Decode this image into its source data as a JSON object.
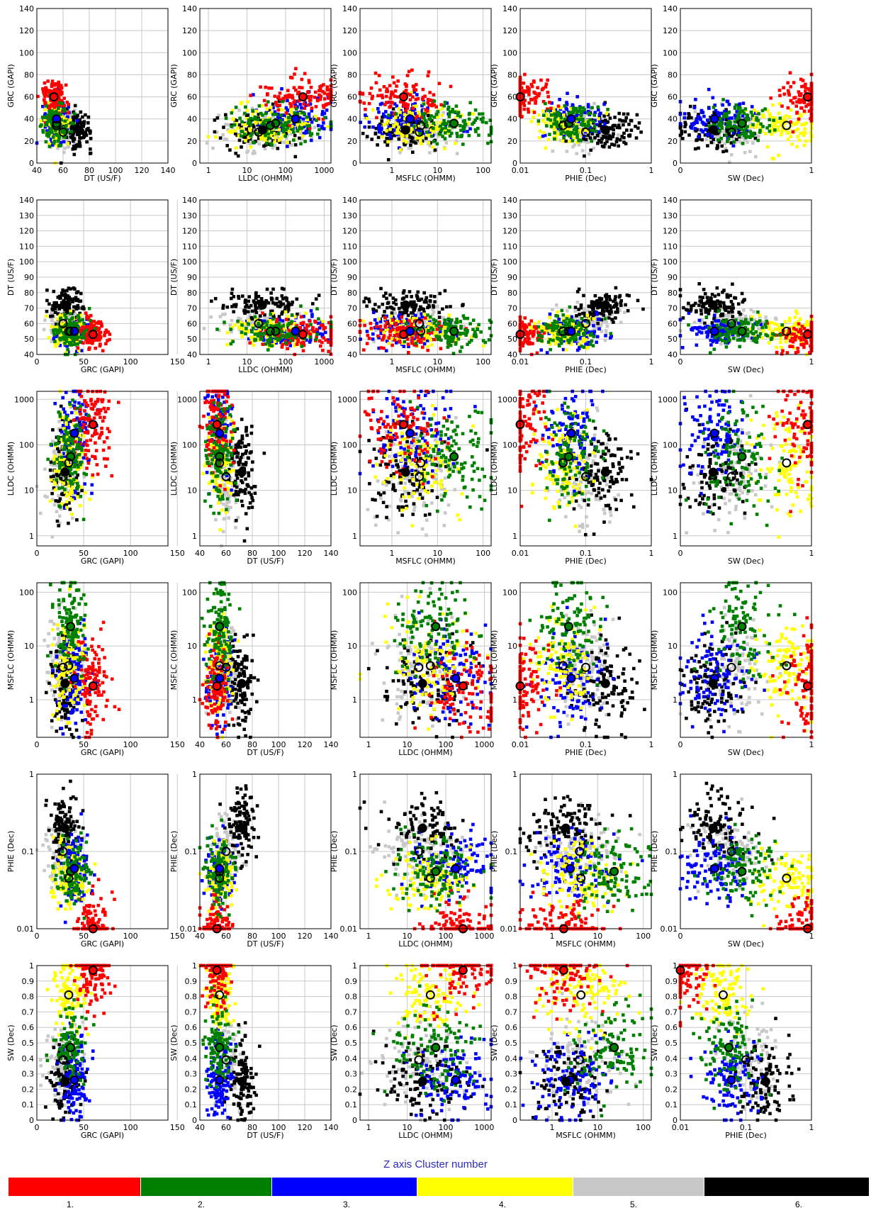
{
  "chart_data": {
    "type": "scatter",
    "layout": "scatter-matrix",
    "rows": 6,
    "cols": 5,
    "axes": {
      "GRC (GAPI)": {
        "scale": "linear",
        "range": [
          0,
          140
        ]
      },
      "DT (US/F)": {
        "scale": "linear",
        "range": [
          40,
          140
        ]
      },
      "LLDC (OHMM)": {
        "scale": "log",
        "range": [
          0.6,
          1500
        ]
      },
      "MSFLC (OHMM)": {
        "scale": "log",
        "range": [
          0.2,
          150
        ]
      },
      "PHIE (Dec)": {
        "scale": "log",
        "range": [
          0.01,
          1
        ]
      },
      "SW (Dec)": {
        "scale": "linear",
        "range": [
          0,
          1
        ]
      }
    },
    "x_ticks": {
      "GRC (GAPI)": [
        "0",
        "50",
        "100",
        "150"
      ],
      "DT (US/F)": [
        "40",
        "60",
        "80",
        "100",
        "120",
        "140"
      ],
      "LLDC (OHMM)": [
        "1",
        "10",
        "100",
        "1000"
      ],
      "MSFLC (OHMM)": [
        "1",
        "10",
        "100"
      ],
      "PHIE (Dec)": [
        "0.01",
        "0.1",
        "1"
      ],
      "SW (Dec)": [
        "0",
        "1"
      ]
    },
    "y_ticks": {
      "GRC (GAPI)": [
        "0",
        "20",
        "40",
        "60",
        "80",
        "100",
        "120",
        "140"
      ],
      "DT (US/F)": [
        "40",
        "50",
        "60",
        "70",
        "80",
        "90",
        "100",
        "110",
        "120",
        "130",
        "140"
      ],
      "LLDC (OHMM)": [
        "1",
        "10",
        "100",
        "1000"
      ],
      "MSFLC (OHMM)": [
        "1",
        "10",
        "100"
      ],
      "PHIE (Dec)": [
        "0.01",
        "0.1",
        "1"
      ],
      "SW (Dec)": [
        "0",
        "0.1",
        "0.2",
        "0.3",
        "0.4",
        "0.5",
        "0.6",
        "0.7",
        "0.8",
        "0.9",
        "1"
      ]
    },
    "panels": [
      {
        "y": "GRC (GAPI)",
        "x": [
          "DT (US/F)",
          "LLDC (OHMM)",
          "MSFLC (OHMM)",
          "PHIE (Dec)",
          "SW (Dec)"
        ]
      },
      {
        "y": "DT (US/F)",
        "x": [
          "GRC (GAPI)",
          "LLDC (OHMM)",
          "MSFLC (OHMM)",
          "PHIE (Dec)",
          "SW (Dec)"
        ]
      },
      {
        "y": "LLDC (OHMM)",
        "x": [
          "GRC (GAPI)",
          "DT (US/F)",
          "MSFLC (OHMM)",
          "PHIE (Dec)",
          "SW (Dec)"
        ]
      },
      {
        "y": "MSFLC (OHMM)",
        "x": [
          "GRC (GAPI)",
          "DT (US/F)",
          "LLDC (OHMM)",
          "PHIE (Dec)",
          "SW (Dec)"
        ]
      },
      {
        "y": "PHIE (Dec)",
        "x": [
          "GRC (GAPI)",
          "DT (US/F)",
          "LLDC (OHMM)",
          "MSFLC (OHMM)",
          "SW (Dec)"
        ]
      },
      {
        "y": "SW (Dec)",
        "x": [
          "GRC (GAPI)",
          "DT (US/F)",
          "LLDC (OHMM)",
          "MSFLC (OHMM)",
          "PHIE (Dec)"
        ]
      }
    ],
    "clusters": [
      {
        "id": 1,
        "label": "1.",
        "color": "#ff0000",
        "centroid": {
          "GRC (GAPI)": 60,
          "DT (US/F)": 53,
          "LLDC (OHMM)": 280,
          "MSFLC (OHMM)": 1.8,
          "PHIE (Dec)": 0.01,
          "SW (Dec)": 0.97
        }
      },
      {
        "id": 2,
        "label": "2.",
        "color": "#008000",
        "centroid": {
          "GRC (GAPI)": 36,
          "DT (US/F)": 55,
          "LLDC (OHMM)": 55,
          "MSFLC (OHMM)": 23,
          "PHIE (Dec)": 0.055,
          "SW (Dec)": 0.47
        }
      },
      {
        "id": 3,
        "label": "3.",
        "color": "#0000ff",
        "centroid": {
          "GRC (GAPI)": 40,
          "DT (US/F)": 55,
          "LLDC (OHMM)": 180,
          "MSFLC (OHMM)": 2.5,
          "PHIE (Dec)": 0.06,
          "SW (Dec)": 0.26
        }
      },
      {
        "id": 4,
        "label": "4.",
        "color": "#ffff00",
        "centroid": {
          "GRC (GAPI)": 34,
          "DT (US/F)": 55,
          "LLDC (OHMM)": 40,
          "MSFLC (OHMM)": 4.3,
          "PHIE (Dec)": 0.045,
          "SW (Dec)": 0.81
        }
      },
      {
        "id": 5,
        "label": "5.",
        "color": "#c8c8c8",
        "centroid": {
          "GRC (GAPI)": 28,
          "DT (US/F)": 60,
          "LLDC (OHMM)": 20,
          "MSFLC (OHMM)": 4,
          "PHIE (Dec)": 0.1,
          "SW (Dec)": 0.39
        }
      },
      {
        "id": 6,
        "label": "6.",
        "color": "#000000",
        "centroid": {
          "GRC (GAPI)": 30,
          "DT (US/F)": 72,
          "LLDC (OHMM)": 25,
          "MSFLC (OHMM)": 2,
          "PHIE (Dec)": 0.2,
          "SW (Dec)": 0.25
        }
      }
    ],
    "legend": {
      "title": "Z axis Cluster number",
      "placement": "bottom"
    }
  }
}
